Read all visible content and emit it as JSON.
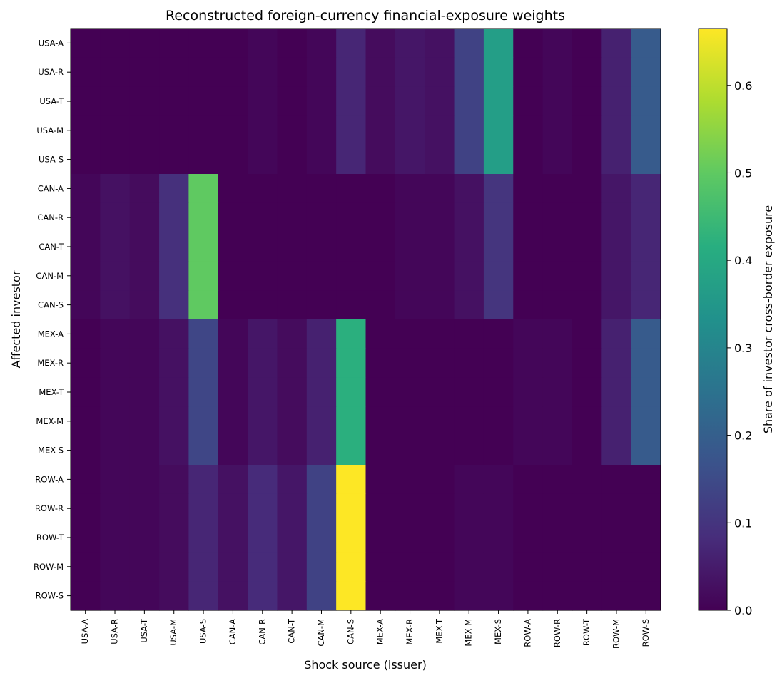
{
  "chart_data": {
    "type": "heatmap",
    "title": "Reconstructed foreign-currency financial-exposure weights",
    "xlabel": "Shock source (issuer)",
    "ylabel": "Affected investor",
    "colorbar_label": "Share of investor cross-border exposure",
    "colormap": "viridis",
    "zlim": [
      0,
      0.665
    ],
    "colorbar_ticks": [
      "0.0",
      "0.1",
      "0.2",
      "0.3",
      "0.4",
      "0.5",
      "0.6"
    ],
    "colorbar_tick_values": [
      0,
      0.1,
      0.2,
      0.3,
      0.4,
      0.5,
      0.6
    ],
    "x_labels": [
      "USA-A",
      "USA-R",
      "USA-T",
      "USA-M",
      "USA-S",
      "CAN-A",
      "CAN-R",
      "CAN-T",
      "CAN-M",
      "CAN-S",
      "MEX-A",
      "MEX-R",
      "MEX-T",
      "MEX-M",
      "MEX-S",
      "ROW-A",
      "ROW-R",
      "ROW-T",
      "ROW-M",
      "ROW-S"
    ],
    "y_labels": [
      "USA-A",
      "USA-R",
      "USA-T",
      "USA-M",
      "USA-S",
      "CAN-A",
      "CAN-R",
      "CAN-T",
      "CAN-M",
      "CAN-S",
      "MEX-A",
      "MEX-R",
      "MEX-T",
      "MEX-M",
      "MEX-S",
      "ROW-A",
      "ROW-R",
      "ROW-T",
      "ROW-M",
      "ROW-S"
    ],
    "block_values": [
      [
        [
          0.0,
          0.0,
          0.0,
          0.0,
          0.0
        ],
        [
          0.0,
          0.01,
          0.0,
          0.01,
          0.07
        ],
        [
          0.02,
          0.04,
          0.03,
          0.13,
          0.37
        ],
        [
          0.0,
          0.01,
          0.0,
          0.06,
          0.19
        ]
      ],
      [
        [
          0.01,
          0.03,
          0.02,
          0.09,
          0.5
        ],
        [
          0.0,
          0.0,
          0.0,
          0.0,
          0.0
        ],
        [
          0.0,
          0.01,
          0.01,
          0.03,
          0.1
        ],
        [
          0.0,
          0.0,
          0.0,
          0.04,
          0.07
        ]
      ],
      [
        [
          0.0,
          0.01,
          0.01,
          0.03,
          0.14
        ],
        [
          0.01,
          0.04,
          0.02,
          0.06,
          0.42
        ],
        [
          0.0,
          0.0,
          0.0,
          0.0,
          0.0
        ],
        [
          0.01,
          0.01,
          0.0,
          0.06,
          0.19
        ]
      ],
      [
        [
          0.0,
          0.01,
          0.01,
          0.02,
          0.07
        ],
        [
          0.03,
          0.08,
          0.04,
          0.13,
          0.665
        ],
        [
          0.0,
          0.0,
          0.0,
          0.01,
          0.01
        ],
        [
          0.0,
          0.0,
          0.0,
          0.0,
          0.0
        ]
      ]
    ]
  }
}
